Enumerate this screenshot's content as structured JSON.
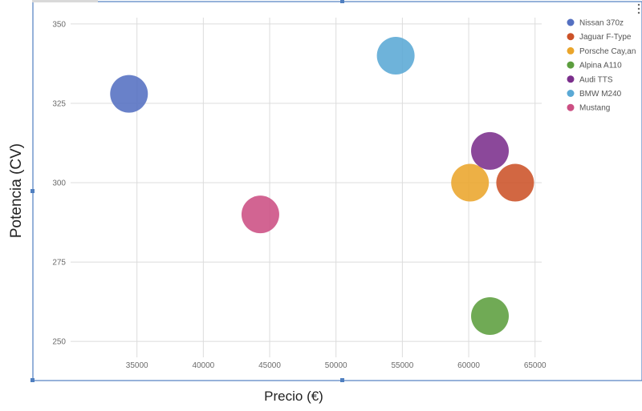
{
  "chart_data": {
    "type": "scatter",
    "xlabel": "Precio (€)",
    "ylabel": "Potencia (CV)",
    "xlim": [
      30000,
      65500
    ],
    "ylim": [
      245,
      352
    ],
    "x_ticks": [
      35000,
      40000,
      45000,
      50000,
      55000,
      60000,
      65000
    ],
    "y_ticks": [
      250,
      275,
      300,
      325,
      350
    ],
    "grid": true,
    "legend_position": "right",
    "series": [
      {
        "name": "Nissan 370z",
        "color": "#5470c1",
        "x": 34400,
        "y": 328
      },
      {
        "name": "Jaguar F-Type",
        "color": "#cc5228",
        "x": 63500,
        "y": 300
      },
      {
        "name": "Porsche Cay,an",
        "color": "#eaa52b",
        "x": 60100,
        "y": 300
      },
      {
        "name": "Alpina A110",
        "color": "#5c9e3e",
        "x": 61600,
        "y": 258
      },
      {
        "name": "Audi TTS",
        "color": "#7b2f8c",
        "x": 61600,
        "y": 310
      },
      {
        "name": "BMW M240",
        "color": "#5aa9d5",
        "x": 54500,
        "y": 340
      },
      {
        "name": "Mustang",
        "color": "#cc4f83",
        "x": 44300,
        "y": 290
      }
    ]
  }
}
